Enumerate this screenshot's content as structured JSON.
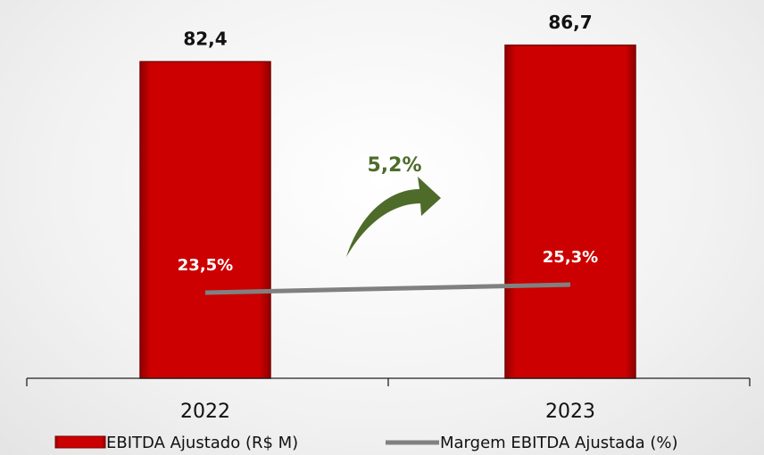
{
  "chart_data": {
    "type": "bar",
    "categories": [
      "2022",
      "2023"
    ],
    "series": [
      {
        "name": "EBITDA Ajustado (R$ M)",
        "type": "bar",
        "color": "#cc0000",
        "values": [
          82.4,
          86.7
        ],
        "value_labels": [
          "82,4",
          "86,7"
        ]
      },
      {
        "name": "Margem EBITDA Ajustada (%)",
        "type": "line",
        "axis": "y2",
        "color": "#808080",
        "values": [
          23.5,
          25.3
        ],
        "value_labels": [
          "23,5%",
          "25,3%"
        ]
      }
    ],
    "ylim": [
      0,
      98
    ],
    "y2lim": [
      4.3,
      88.7
    ],
    "annotations": [
      {
        "text": "5,2%",
        "color": "#4e6b2a"
      }
    ],
    "grid": false
  }
}
